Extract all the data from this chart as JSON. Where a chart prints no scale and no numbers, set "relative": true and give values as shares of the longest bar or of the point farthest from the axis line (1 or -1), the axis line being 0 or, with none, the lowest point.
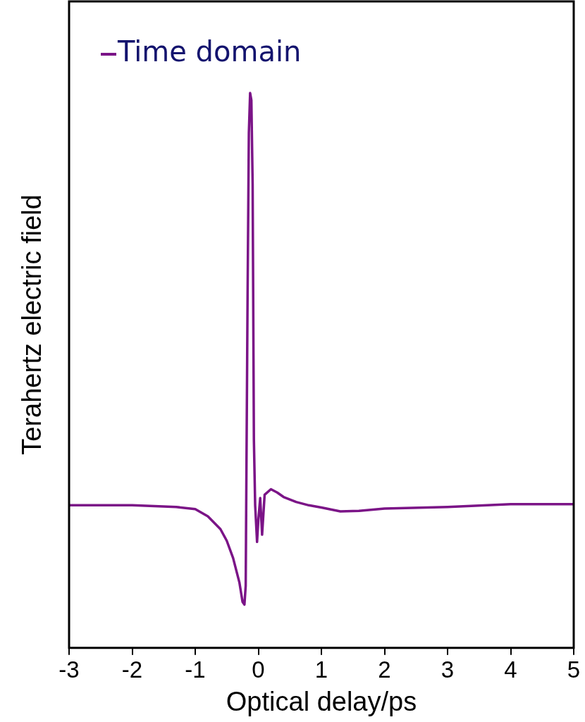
{
  "chart_data": {
    "type": "line",
    "xlabel": "Optical delay/ps",
    "ylabel": "Terahertz electric field",
    "relative": true,
    "legend": "top left",
    "grid": false,
    "marker": "none",
    "line_style": "solid",
    "xlim": [
      -3,
      5
    ],
    "xticks": [
      -3,
      -2,
      -1,
      0,
      1,
      2,
      3,
      4,
      5
    ],
    "series": [
      {
        "name": "Time domain",
        "color": "#7b1487",
        "x": [
          -3,
          -2,
          -1.3,
          -1,
          -0.8,
          -0.6,
          -0.5,
          -0.4,
          -0.3,
          -0.25,
          -0.22,
          -0.2,
          -0.17,
          -0.15,
          -0.13,
          -0.11,
          -0.09,
          -0.07,
          -0.05,
          -0.02,
          0,
          0.03,
          0.06,
          0.1,
          0.2,
          0.3,
          0.4,
          0.6,
          0.8,
          1,
          1.3,
          1.6,
          2,
          3,
          4,
          5
        ],
        "values": [
          0.257,
          0.257,
          0.254,
          0.25,
          0.237,
          0.214,
          0.193,
          0.162,
          0.118,
          0.083,
          0.078,
          0.112,
          0.638,
          0.928,
          1,
          0.987,
          0.836,
          0.375,
          0.257,
          0.191,
          0.23,
          0.27,
          0.204,
          0.276,
          0.286,
          0.28,
          0.272,
          0.263,
          0.257,
          0.253,
          0.246,
          0.247,
          0.251,
          0.254,
          0.259,
          0.259
        ]
      }
    ]
  }
}
